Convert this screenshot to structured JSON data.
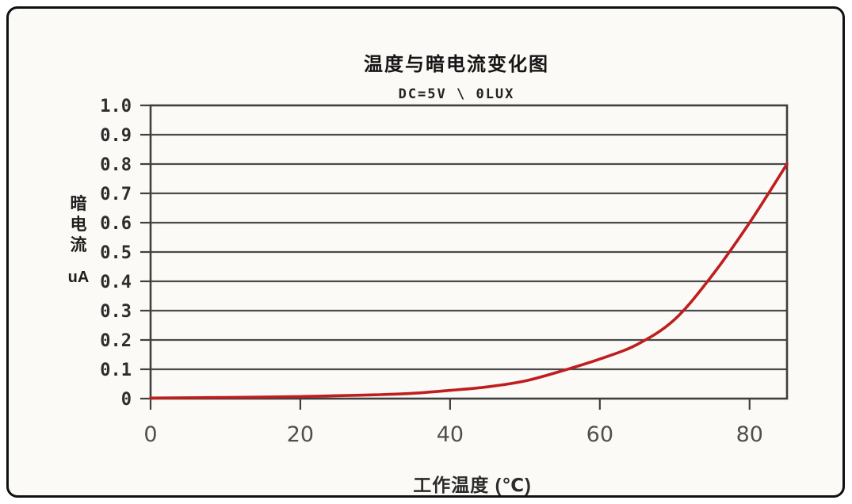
{
  "chart": {
    "title": "温度与暗电流变化图",
    "subtitle": "DC=5V \\ 0LUX",
    "y_axis": {
      "label": "暗电流",
      "unit": "uA"
    },
    "x_axis": {
      "label": "工作温度 (℃)"
    }
  },
  "chart_data": {
    "type": "line",
    "title": "温度与暗电流变化图",
    "subtitle": "DC=5V \\ 0LUX",
    "xlabel": "工作温度 (℃)",
    "ylabel": "暗电流 uA",
    "x": [
      0,
      5,
      10,
      15,
      20,
      25,
      30,
      35,
      40,
      45,
      50,
      55,
      60,
      65,
      70,
      75,
      80,
      85
    ],
    "values": [
      0.002,
      0.003,
      0.004,
      0.005,
      0.007,
      0.01,
      0.013,
      0.018,
      0.028,
      0.04,
      0.06,
      0.095,
      0.135,
      0.185,
      0.27,
      0.42,
      0.6,
      0.8
    ],
    "x_ticks": [
      "0",
      "20",
      "40",
      "60",
      "80"
    ],
    "y_ticks": [
      "1.0",
      "0.9",
      "0.8",
      "0.7",
      "0.6",
      "0.5",
      "0.4",
      "0.3",
      "0.2",
      "0.1",
      "0"
    ],
    "xlim": [
      0,
      85
    ],
    "ylim": [
      0,
      1.0
    ],
    "grid": "horizontal",
    "legend": "none",
    "series_color": "#bf1e1e",
    "grid_color": "#4a4a4a",
    "axis_color": "#3f3f3f",
    "text_color": "#2d2d2d"
  }
}
